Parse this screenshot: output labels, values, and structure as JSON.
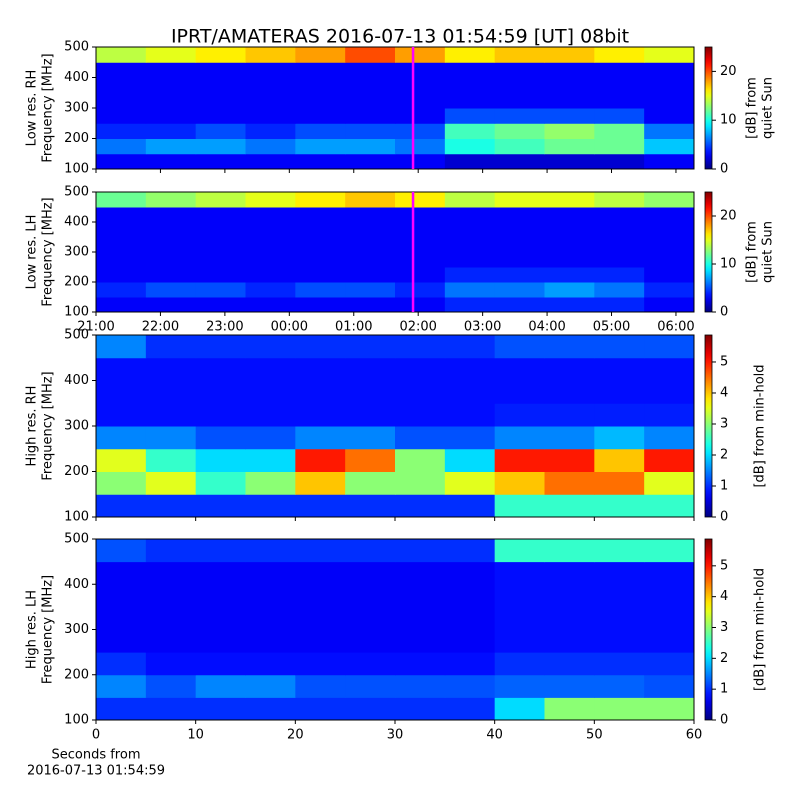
{
  "title": "IPRT/AMATERAS 2016-07-13 01:54:59 [UT]   08bit",
  "marker_time": 4.92,
  "marker_color": "#ff00ff",
  "chart_data": [
    {
      "type": "heatmap",
      "ylabel": [
        "Low res. RH",
        "Frequency [MHz]"
      ],
      "colorbar_label": [
        "[dB] from",
        "quiet Sun"
      ],
      "ylim": [
        100,
        500
      ],
      "yticks": [
        100,
        200,
        300,
        400,
        500
      ],
      "clim": [
        0,
        25
      ],
      "cticks": [
        0,
        10,
        20
      ],
      "values": [
        [
          3,
          3,
          3,
          3,
          3,
          3,
          3,
          2,
          2,
          2,
          2,
          3
        ],
        [
          6,
          7,
          7,
          6,
          7,
          7,
          6,
          10,
          11,
          12,
          12,
          8
        ],
        [
          4,
          4,
          5,
          4,
          5,
          5,
          5,
          11,
          12,
          13,
          12,
          6
        ],
        [
          3,
          3,
          3,
          3,
          3,
          3,
          3,
          5,
          5,
          5,
          5,
          3
        ],
        [
          3,
          3,
          3,
          3,
          3,
          3,
          3,
          3,
          3,
          3,
          3,
          3
        ],
        [
          3,
          3,
          3,
          3,
          3,
          3,
          3,
          3,
          3,
          3,
          3,
          3
        ],
        [
          3,
          3,
          3,
          3,
          3,
          3,
          3,
          3,
          3,
          3,
          3,
          3
        ],
        [
          14,
          15,
          16,
          17,
          18,
          20,
          18,
          16,
          17,
          17,
          16,
          15
        ]
      ]
    },
    {
      "type": "heatmap",
      "ylabel": [
        "Low res. LH",
        "Frequency [MHz]"
      ],
      "colorbar_label": [
        "[dB] from",
        "quiet Sun"
      ],
      "ylim": [
        100,
        500
      ],
      "yticks": [
        100,
        200,
        300,
        400,
        500
      ],
      "clim": [
        0,
        25
      ],
      "cticks": [
        0,
        10,
        20
      ],
      "xlim": [
        0,
        9.28
      ],
      "xticks": [
        {
          "value": 0,
          "label": "21:00"
        },
        {
          "value": 1,
          "label": "22:00"
        },
        {
          "value": 2,
          "label": "23:00"
        },
        {
          "value": 3,
          "label": "00:00"
        },
        {
          "value": 4,
          "label": "01:00"
        },
        {
          "value": 5,
          "label": "02:00"
        },
        {
          "value": 6,
          "label": "03:00"
        },
        {
          "value": 7,
          "label": "04:00"
        },
        {
          "value": 8,
          "label": "05:00"
        },
        {
          "value": 9,
          "label": "06:00"
        }
      ],
      "values": [
        [
          3,
          3,
          3,
          3,
          3,
          3,
          3,
          4,
          4,
          4,
          4,
          3
        ],
        [
          4,
          5,
          5,
          4,
          5,
          5,
          4,
          6,
          6,
          7,
          6,
          4
        ],
        [
          3,
          3,
          3,
          3,
          3,
          3,
          3,
          4,
          4,
          4,
          4,
          3
        ],
        [
          3,
          3,
          3,
          3,
          3,
          3,
          3,
          3,
          3,
          3,
          3,
          3
        ],
        [
          3,
          3,
          3,
          3,
          3,
          3,
          3,
          3,
          3,
          3,
          3,
          3
        ],
        [
          3,
          3,
          3,
          3,
          3,
          3,
          3,
          3,
          3,
          3,
          3,
          3
        ],
        [
          3,
          3,
          3,
          3,
          3,
          3,
          3,
          3,
          3,
          3,
          3,
          3
        ],
        [
          12,
          13,
          14,
          15,
          16,
          17,
          16,
          14,
          15,
          15,
          14,
          13
        ]
      ]
    },
    {
      "type": "heatmap",
      "ylabel": [
        "High res. RH",
        "Frequency [MHz]"
      ],
      "colorbar_label": [
        "[dB] from min-hold"
      ],
      "ylim": [
        100,
        500
      ],
      "yticks": [
        100,
        200,
        300,
        400,
        500
      ],
      "clim": [
        0,
        5.87
      ],
      "cticks": [
        0,
        1,
        2,
        3,
        4,
        5
      ],
      "values": [
        [
          1,
          1,
          1,
          1,
          1,
          1,
          1,
          1,
          2.5,
          2.5,
          2.5,
          2.5
        ],
        [
          3,
          3.5,
          2.5,
          3,
          4,
          3,
          3,
          3.5,
          4,
          4.5,
          4.5,
          3.5
        ],
        [
          3.5,
          2.5,
          2,
          2,
          5,
          4.5,
          3,
          2,
          5,
          5,
          4,
          5
        ],
        [
          1.5,
          1.5,
          1.2,
          1.2,
          1.5,
          1.5,
          1.2,
          1.2,
          1.5,
          1.5,
          1.8,
          1.5
        ],
        [
          0.8,
          0.8,
          0.8,
          0.8,
          0.8,
          0.8,
          0.8,
          0.8,
          0.9,
          0.9,
          0.9,
          0.9
        ],
        [
          0.8,
          0.8,
          0.8,
          0.8,
          0.8,
          0.8,
          0.8,
          0.8,
          0.8,
          0.8,
          0.8,
          0.8
        ],
        [
          0.8,
          0.8,
          0.8,
          0.8,
          0.8,
          0.8,
          0.8,
          0.8,
          0.8,
          0.8,
          0.8,
          0.8
        ],
        [
          1.5,
          1,
          1,
          1,
          1,
          1,
          1,
          1,
          1.2,
          1.2,
          1.2,
          1.2
        ]
      ]
    },
    {
      "type": "heatmap",
      "ylabel": [
        "High res. LH",
        "Frequency [MHz]"
      ],
      "colorbar_label": [
        "[dB] from min-hold"
      ],
      "ylim": [
        100,
        500
      ],
      "yticks": [
        100,
        200,
        300,
        400,
        500
      ],
      "clim": [
        0,
        5.87
      ],
      "cticks": [
        0,
        1,
        2,
        3,
        4,
        5
      ],
      "xlim": [
        0,
        60
      ],
      "xticks": [
        0,
        10,
        20,
        30,
        40,
        50,
        60
      ],
      "xlabel": [
        "Seconds from",
        "2016-07-13 01:54:59"
      ],
      "values": [
        [
          1,
          1,
          1,
          1,
          1,
          1,
          1,
          1,
          2,
          3,
          3,
          3
        ],
        [
          1.5,
          1.2,
          1.5,
          1.5,
          1.2,
          1.2,
          1.2,
          1.2,
          1.3,
          1.3,
          1.3,
          1.2
        ],
        [
          1,
          0.8,
          0.8,
          0.8,
          0.8,
          0.8,
          0.8,
          0.8,
          1,
          1,
          1,
          1
        ],
        [
          0.7,
          0.7,
          0.7,
          0.7,
          0.7,
          0.7,
          0.7,
          0.7,
          0.8,
          0.8,
          0.8,
          0.8
        ],
        [
          0.7,
          0.7,
          0.7,
          0.7,
          0.7,
          0.7,
          0.7,
          0.7,
          0.8,
          0.8,
          0.8,
          0.8
        ],
        [
          0.7,
          0.7,
          0.7,
          0.7,
          0.7,
          0.7,
          0.7,
          0.7,
          0.8,
          0.8,
          0.8,
          0.8
        ],
        [
          0.7,
          0.7,
          0.7,
          0.7,
          0.7,
          0.7,
          0.7,
          0.7,
          0.8,
          0.8,
          0.8,
          0.8
        ],
        [
          1.2,
          1,
          1,
          1,
          1,
          1,
          1,
          1,
          2.5,
          2.5,
          2.5,
          2.5
        ]
      ]
    }
  ]
}
